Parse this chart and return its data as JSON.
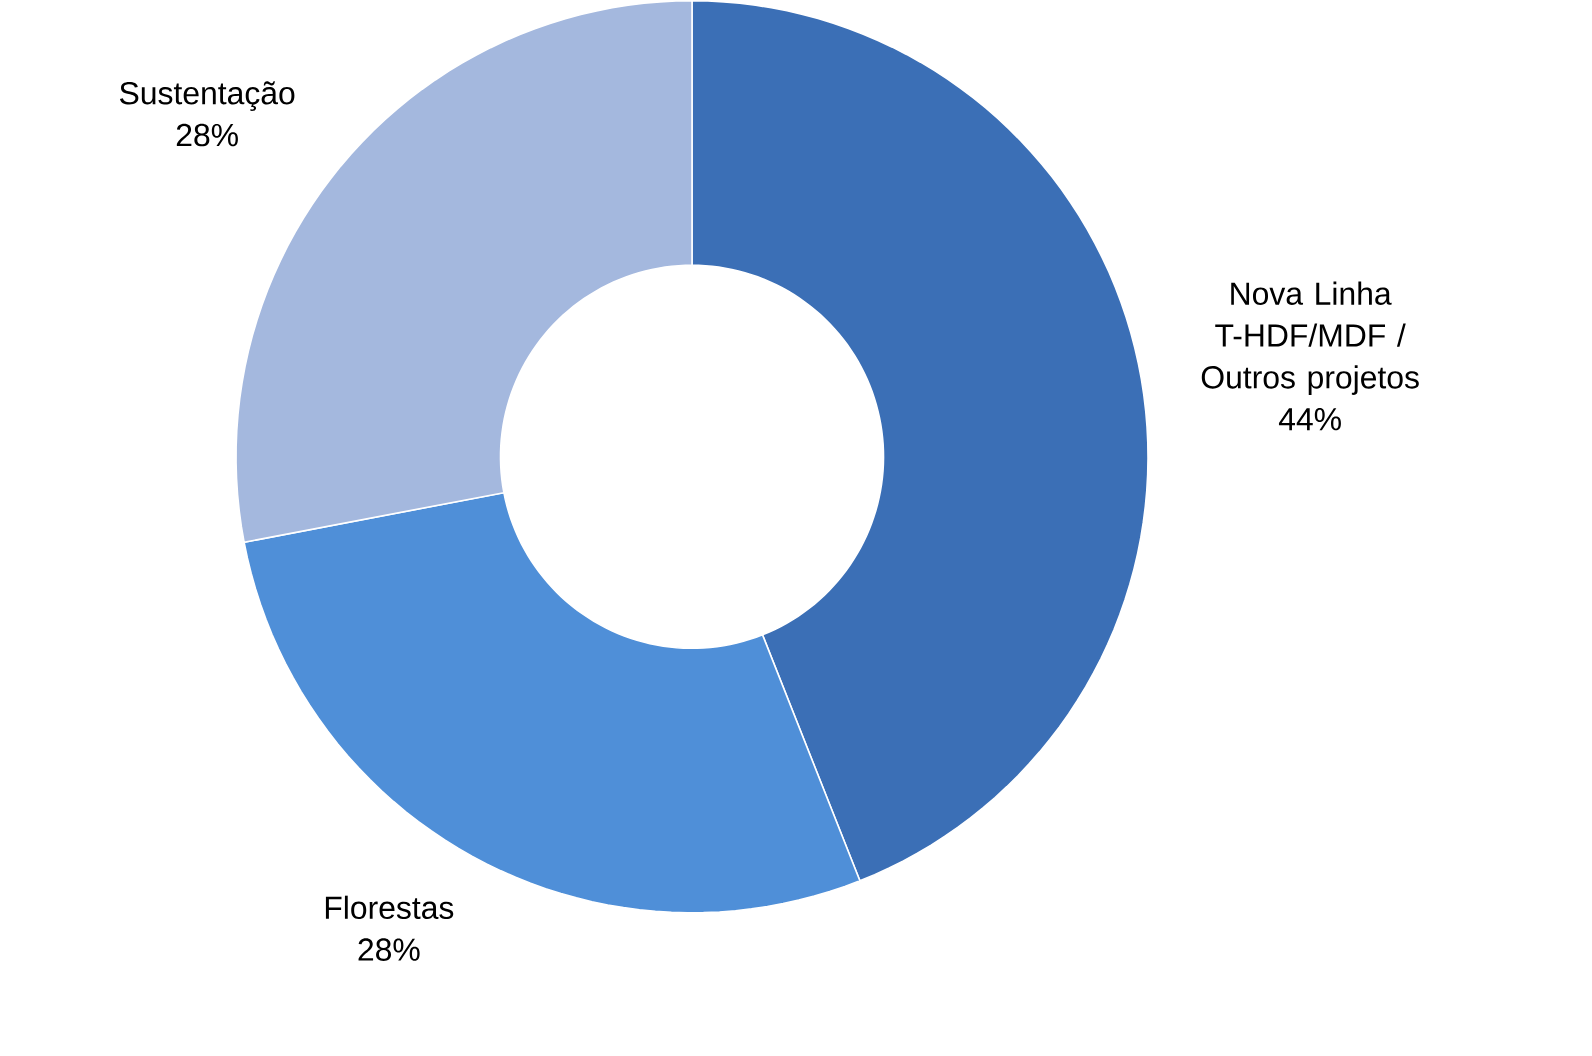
{
  "chart_data": {
    "type": "donut",
    "categories": [
      "Nova Linha T-HDF/MDF / Outros projetos",
      "Florestas",
      "Sustentação"
    ],
    "values": [
      44,
      28,
      28
    ],
    "value_labels": [
      "44%",
      "28%",
      "28%"
    ],
    "colors": [
      "#3b6fb6",
      "#4f8fd8",
      "#a4b8de"
    ]
  }
}
